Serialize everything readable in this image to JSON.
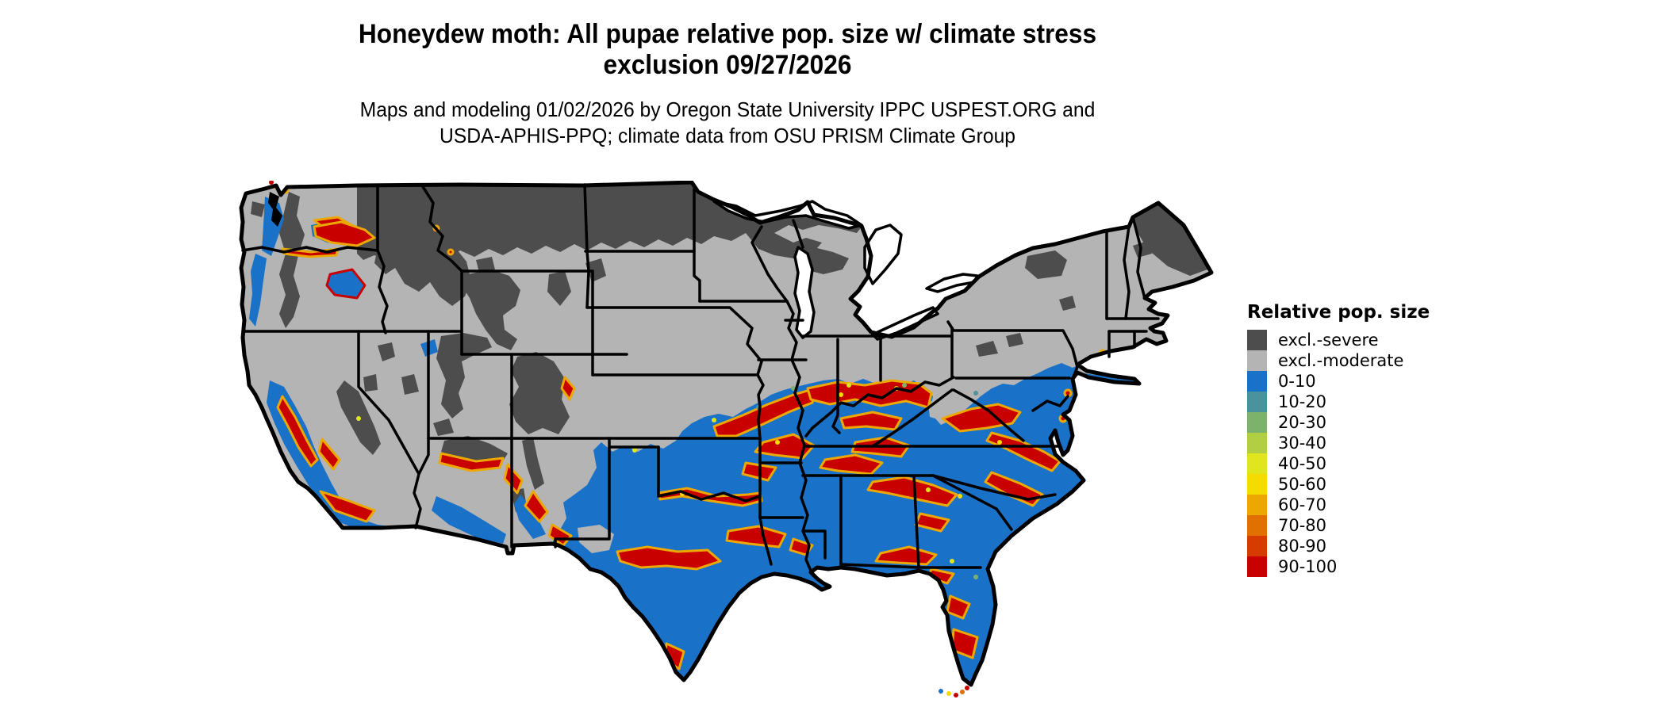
{
  "title": {
    "line1": "Honeydew moth: All pupae relative pop. size w/ climate stress",
    "line2": "exclusion 09/27/2026"
  },
  "subtitle": {
    "line1": "Maps and modeling 01/02/2026 by Oregon State University IPPC USPEST.ORG and",
    "line2": "USDA-APHIS-PPQ; climate data from OSU PRISM Climate Group"
  },
  "legend": {
    "title": "Relative pop. size",
    "items": [
      {
        "label": "excl.-severe",
        "color": "#4d4d4d"
      },
      {
        "label": "excl.-moderate",
        "color": "#b4b4b4"
      },
      {
        "label": "0-10",
        "color": "#1a72c8"
      },
      {
        "label": "10-20",
        "color": "#4a939c"
      },
      {
        "label": "20-30",
        "color": "#7cb26b"
      },
      {
        "label": "30-40",
        "color": "#b2cf44"
      },
      {
        "label": "40-50",
        "color": "#e0e51e"
      },
      {
        "label": "50-60",
        "color": "#f5dc00"
      },
      {
        "label": "60-70",
        "color": "#eda800"
      },
      {
        "label": "70-80",
        "color": "#e07000"
      },
      {
        "label": "80-90",
        "color": "#d63b00"
      },
      {
        "label": "90-100",
        "color": "#c90000"
      }
    ]
  },
  "map": {
    "region": "Conterminous United States",
    "border_color": "#000000",
    "water_color": "#ffffff"
  }
}
